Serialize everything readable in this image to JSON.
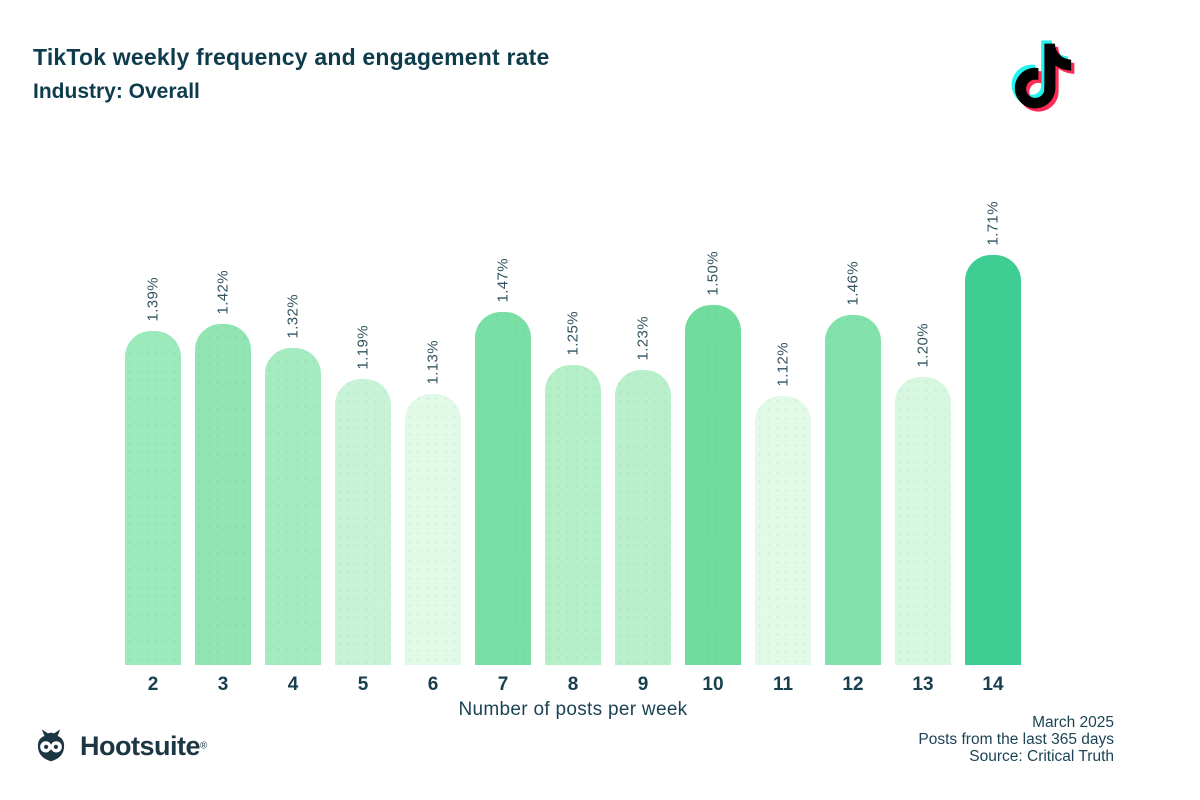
{
  "header": {
    "title": "TikTok weekly frequency and engagement rate",
    "subtitle": "Industry: Overall"
  },
  "chart_data": {
    "type": "bar",
    "title": "TikTok weekly frequency and engagement rate",
    "subtitle": "Industry: Overall",
    "categories": [
      "2",
      "3",
      "4",
      "5",
      "6",
      "7",
      "8",
      "9",
      "10",
      "11",
      "12",
      "13",
      "14"
    ],
    "values": [
      1.39,
      1.42,
      1.32,
      1.19,
      1.13,
      1.47,
      1.25,
      1.23,
      1.5,
      1.12,
      1.46,
      1.2,
      1.71
    ],
    "value_labels": [
      "1.39%",
      "1.42%",
      "1.32%",
      "1.19%",
      "1.13%",
      "1.47%",
      "1.25%",
      "1.23%",
      "1.50%",
      "1.12%",
      "1.46%",
      "1.20%",
      "1.71%"
    ],
    "bar_colors": [
      "#9CE9BB",
      "#90E5B2",
      "#A5EBC0",
      "#C9F3D6",
      "#E0FAE7",
      "#7ADFA5",
      "#B4EFC8",
      "#B9F0CB",
      "#72DC9F",
      "#E2FAE8",
      "#83E2AB",
      "#D8F7E0",
      "#3ECD92"
    ],
    "xlabel": "Number of posts per week",
    "ylabel": "",
    "ylim": [
      0,
      1.8
    ],
    "grid": false,
    "legend": "none",
    "value_label_rotation_deg": 90
  },
  "footer": {
    "brand": "Hootsuite",
    "registered": "®",
    "date": "March 2025",
    "note": "Posts from the last 365 days",
    "source": "Source: Critical Truth"
  },
  "colors": {
    "heading_text": "#0E3C4C",
    "label_text": "#31535F",
    "tick_text": "#173F4E",
    "footer_text": "#1C4355",
    "tiktok_cyan": "#25F4EE",
    "tiktok_pink": "#FE2C55",
    "tiktok_black": "#010101",
    "hootsuite_navy": "#1C3643"
  }
}
